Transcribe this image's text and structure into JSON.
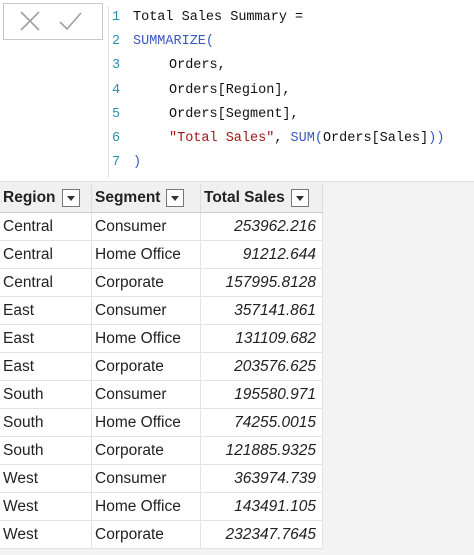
{
  "formula_bar": {
    "line_numbers": [
      1,
      2,
      3,
      4,
      5,
      6,
      7
    ],
    "lines": [
      [
        "Total Sales Summary ="
      ],
      [
        "SUMMARIZE("
      ],
      [
        "Orders,"
      ],
      [
        "Orders[Region],"
      ],
      [
        "Orders[Segment],"
      ],
      [
        "\"Total Sales\"",
        ", ",
        "SUM(",
        "Orders[Sales]",
        "))"
      ],
      [
        ")"
      ]
    ]
  },
  "table": {
    "columns": [
      "Region",
      "Segment",
      "Total Sales"
    ],
    "rows": [
      [
        "Central",
        "Consumer",
        253962.216
      ],
      [
        "Central",
        "Home Office",
        91212.644
      ],
      [
        "Central",
        "Corporate",
        157995.8128
      ],
      [
        "East",
        "Consumer",
        357141.861
      ],
      [
        "East",
        "Home Office",
        131109.682
      ],
      [
        "East",
        "Corporate",
        203576.625
      ],
      [
        "South",
        "Consumer",
        195580.971
      ],
      [
        "South",
        "Home Office",
        74255.0015
      ],
      [
        "South",
        "Corporate",
        121885.9325
      ],
      [
        "West",
        "Consumer",
        363974.739
      ],
      [
        "West",
        "Home Office",
        143491.105
      ],
      [
        "West",
        "Corporate",
        232347.7645
      ]
    ]
  }
}
